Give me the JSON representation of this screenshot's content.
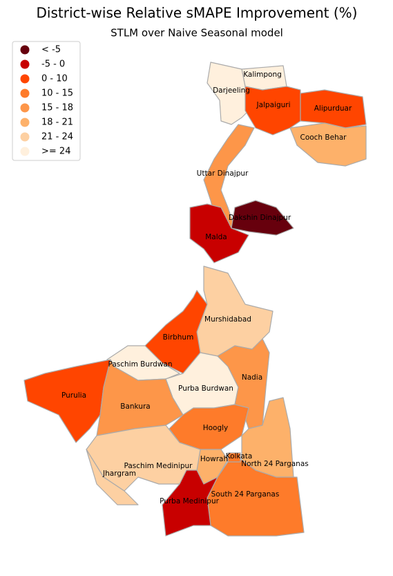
{
  "title": "District-wise Relative sMAPE Improvement (%)",
  "subtitle": "STLM over Naive Seasonal model",
  "legend": [
    {
      "label": "< -5",
      "color": "#67000d"
    },
    {
      "label": "-5 - 0",
      "color": "#c80000"
    },
    {
      "label": "0 - 10",
      "color": "#ff4500"
    },
    {
      "label": "10 - 15",
      "color": "#fe7b2a"
    },
    {
      "label": "15 - 18",
      "color": "#fd9649"
    },
    {
      "label": "18 - 21",
      "color": "#fdb16a"
    },
    {
      "label": "21 - 24",
      "color": "#fdd0a2"
    },
    {
      "label": ">= 24",
      "color": "#fff0dd"
    }
  ],
  "districts": [
    {
      "name": "Kalimpong",
      "color": "#fff0dd"
    },
    {
      "name": "Darjeeling",
      "color": "#fff0dd"
    },
    {
      "name": "Jalpaiguri",
      "color": "#ff4500"
    },
    {
      "name": "Alipurduar",
      "color": "#ff4500"
    },
    {
      "name": "Cooch Behar",
      "color": "#fdb16a"
    },
    {
      "name": "Uttar Dinajpur",
      "color": "#fd9649"
    },
    {
      "name": "Dakshin Dinajpur",
      "color": "#67000d"
    },
    {
      "name": "Malda",
      "color": "#c80000"
    },
    {
      "name": "Murshidabad",
      "color": "#fdd0a2"
    },
    {
      "name": "Birbhum",
      "color": "#ff4500"
    },
    {
      "name": "Paschim Burdwan",
      "color": "#fff0dd"
    },
    {
      "name": "Purba Burdwan",
      "color": "#fff0dd"
    },
    {
      "name": "Nadia",
      "color": "#fd9649"
    },
    {
      "name": "Purulia",
      "color": "#ff4500"
    },
    {
      "name": "Bankura",
      "color": "#fd9649"
    },
    {
      "name": "Hoogly",
      "color": "#fe7b2a"
    },
    {
      "name": "Howrah",
      "color": "#fdb16a"
    },
    {
      "name": "Kolkata",
      "color": "#fe7b2a"
    },
    {
      "name": "North 24 Parganas",
      "color": "#fdb16a"
    },
    {
      "name": "South 24 Parganas",
      "color": "#fe7b2a"
    },
    {
      "name": "Paschim Medinipur",
      "color": "#fdd0a2"
    },
    {
      "name": "Jhargram",
      "color": "#fdd0a2"
    },
    {
      "name": "Purba Medinipur",
      "color": "#c80000"
    }
  ]
}
